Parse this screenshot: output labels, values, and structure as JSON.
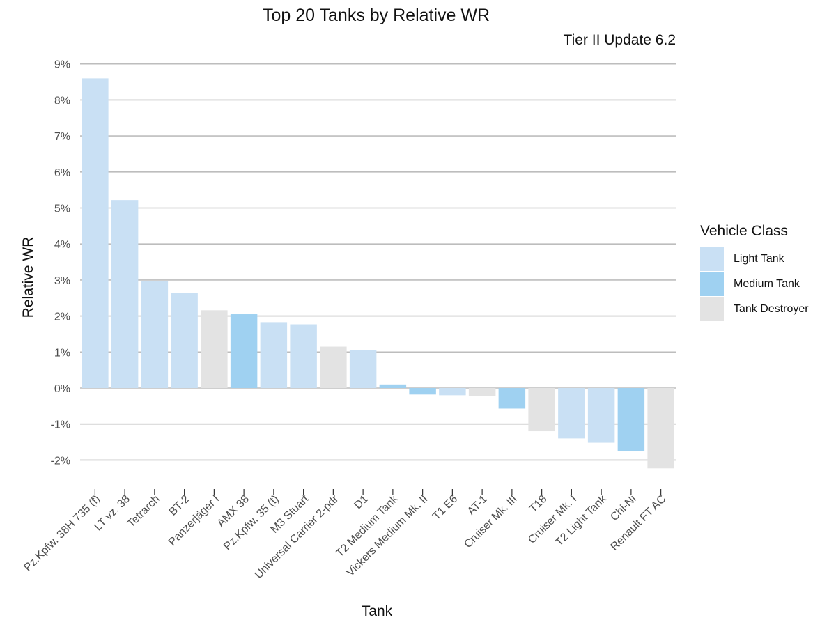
{
  "chart_data": {
    "type": "bar",
    "title": "Top 20 Tanks by Relative WR",
    "subtitle": "Tier II Update 6.2",
    "xlabel": "Tank",
    "ylabel": "Relative WR",
    "ylim": [
      -2.5,
      9.2
    ],
    "yticks": [
      9,
      8,
      7,
      6,
      5,
      4,
      3,
      2,
      1,
      0,
      -1,
      -2
    ],
    "ytick_labels": [
      "9%",
      "8%",
      "7%",
      "6%",
      "5%",
      "4%",
      "3%",
      "2%",
      "1%",
      "0%",
      "-1%",
      "-2%"
    ],
    "grid": true,
    "legend_position": "right",
    "legend_title": "Vehicle Class",
    "classes": [
      {
        "name": "Light Tank",
        "color": "#c9e0f4"
      },
      {
        "name": "Medium Tank",
        "color": "#9fd1f1"
      },
      {
        "name": "Tank Destroyer",
        "color": "#e3e3e3"
      }
    ],
    "categories": [
      "Pz.Kpfw. 38H 735 (f)",
      "LT vz. 38",
      "Tetrarch",
      "BT-2",
      "Panzerjäger I",
      "AMX 38",
      "Pz.Kpfw. 35 (t)",
      "M3 Stuart",
      "Universal Carrier 2-pdr",
      "D1",
      "T2 Medium Tank",
      "Vickers Medium Mk. II",
      "T1 E6",
      "AT-1",
      "Cruiser Mk. III",
      "T18",
      "Cruiser Mk. I",
      "T2 Light Tank",
      "Chi-Ni",
      "Renault FT AC"
    ],
    "values": [
      8.6,
      5.22,
      2.97,
      2.64,
      2.16,
      2.05,
      1.83,
      1.77,
      1.15,
      1.05,
      0.1,
      -0.18,
      -0.2,
      -0.22,
      -0.57,
      -1.2,
      -1.4,
      -1.52,
      -1.75,
      -2.23
    ],
    "vehicle_class": [
      "Light Tank",
      "Light Tank",
      "Light Tank",
      "Light Tank",
      "Tank Destroyer",
      "Medium Tank",
      "Light Tank",
      "Light Tank",
      "Tank Destroyer",
      "Light Tank",
      "Medium Tank",
      "Medium Tank",
      "Light Tank",
      "Tank Destroyer",
      "Medium Tank",
      "Tank Destroyer",
      "Light Tank",
      "Light Tank",
      "Medium Tank",
      "Tank Destroyer"
    ]
  }
}
